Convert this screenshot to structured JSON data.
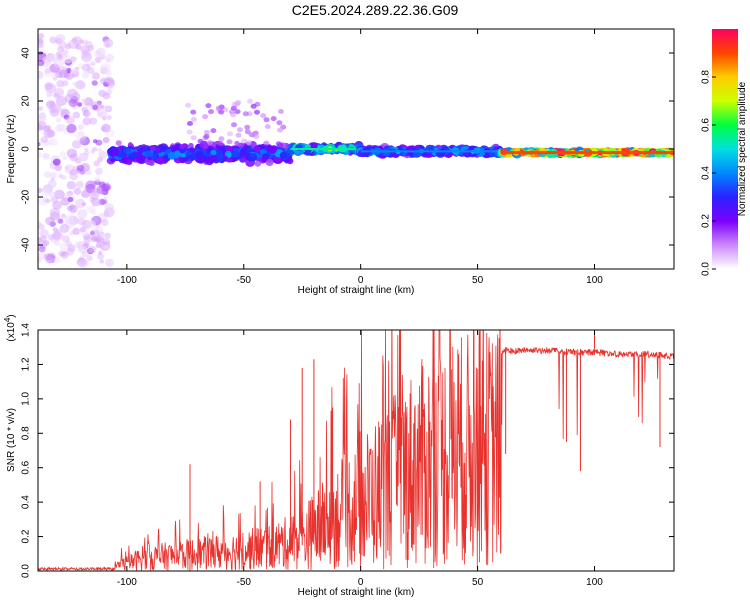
{
  "title": "C2E5.2024.289.22.36.G09",
  "colors": {
    "snr_line": "#e8322e",
    "colormap": [
      "#ffffff",
      "#cc88ff",
      "#7a00ff",
      "#2a22ff",
      "#0088ff",
      "#00e0e0",
      "#00ff40",
      "#ccff00",
      "#ffcc00",
      "#ff4400",
      "#ff0060"
    ]
  },
  "chart_data": [
    {
      "type": "heatmap",
      "title": "C2E5.2024.289.22.36.G09",
      "xlabel": "Height of straight line (km)",
      "ylabel": "Frequency (Hz)",
      "xlim": [
        -138,
        134
      ],
      "ylim": [
        -50,
        50
      ],
      "xticks": [
        -100,
        -50,
        0,
        50,
        100
      ],
      "xtick_labels": [
        "-100",
        "-50",
        "0",
        "50",
        "100"
      ],
      "yticks": [
        -40,
        -20,
        0,
        20,
        40
      ],
      "ytick_labels": [
        "-40",
        "-20",
        "0",
        "20",
        "40"
      ],
      "colorbar": {
        "label": "Normalized spectral amplitude",
        "range": [
          0,
          1
        ],
        "ticks": [
          0.0,
          0.2,
          0.4,
          0.6,
          0.8
        ],
        "tick_labels": [
          "0.0",
          "0.2",
          "0.4",
          "0.6",
          "0.8"
        ]
      },
      "regions": [
        {
          "x": [
            -138,
            -107
          ],
          "freq_center": 0,
          "freq_spread": 48,
          "amplitude": 0.05,
          "description": "noise"
        },
        {
          "x": [
            -107,
            -30
          ],
          "freq_center": -2,
          "freq_spread": 5,
          "amplitude": 0.35
        },
        {
          "x": [
            -30,
            0
          ],
          "freq_center": 0,
          "freq_spread": 2,
          "amplitude": 0.55
        },
        {
          "x": [
            0,
            60
          ],
          "freq_center": -1,
          "freq_spread": 2,
          "amplitude": 0.4
        },
        {
          "x": [
            60,
            134
          ],
          "freq_center": -1.5,
          "freq_spread": 1,
          "amplitude": 0.9
        }
      ],
      "grid": false
    },
    {
      "type": "line",
      "xlabel": "Height of straight line (km)",
      "ylabel": "SNR (10 * v/v)",
      "y_scale_label": "(x10",
      "y_scale_exponent": "4",
      "y_multiplier": 10000,
      "xlim": [
        -138,
        134
      ],
      "ylim": [
        0,
        1.4
      ],
      "xticks": [
        -100,
        -50,
        0,
        50,
        100
      ],
      "xtick_labels": [
        "-100",
        "-50",
        "0",
        "50",
        "100"
      ],
      "yticks": [
        0.0,
        0.2,
        0.4,
        0.6,
        0.8,
        1.0,
        1.2,
        1.4
      ],
      "ytick_labels": [
        "0.0",
        "0.2",
        "0.4",
        "0.6",
        "0.8",
        "1.0",
        "1.2",
        "1.4"
      ],
      "series": [
        {
          "color": "#e8322e",
          "x": [
            -138,
            -120,
            -110,
            -100,
            -95,
            -90,
            -80,
            -70,
            -60,
            -50,
            -40,
            -30,
            -25,
            -20,
            -15,
            -10,
            -5,
            0,
            5,
            10,
            15,
            20,
            30,
            40,
            50,
            60,
            70,
            80,
            90,
            100,
            110,
            120,
            130,
            134
          ],
          "y": [
            0.01,
            0.01,
            0.03,
            0.08,
            0.12,
            0.14,
            0.16,
            0.18,
            0.2,
            0.22,
            0.25,
            0.3,
            0.35,
            0.42,
            0.5,
            0.58,
            0.65,
            0.72,
            0.8,
            0.88,
            0.96,
            1.05,
            1.18,
            1.26,
            1.29,
            1.3,
            1.3,
            1.3,
            1.29,
            1.29,
            1.28,
            1.28,
            1.27,
            1.27
          ],
          "spikes": [
            {
              "x": -73,
              "y": 0.62
            },
            {
              "x": -43,
              "y": 0.52
            },
            {
              "x": -30,
              "y": 0.88
            },
            {
              "x": -25,
              "y": 1.18
            },
            {
              "x": -20,
              "y": 1.23
            },
            {
              "x": -12,
              "y": 0.95
            },
            {
              "x": 62,
              "y": 0.68
            },
            {
              "x": 88,
              "y": 0.75
            },
            {
              "x": 94,
              "y": 0.58
            },
            {
              "x": 100,
              "y": 1.4
            },
            {
              "x": 128,
              "y": 0.72
            }
          ]
        }
      ],
      "grid": false
    }
  ]
}
